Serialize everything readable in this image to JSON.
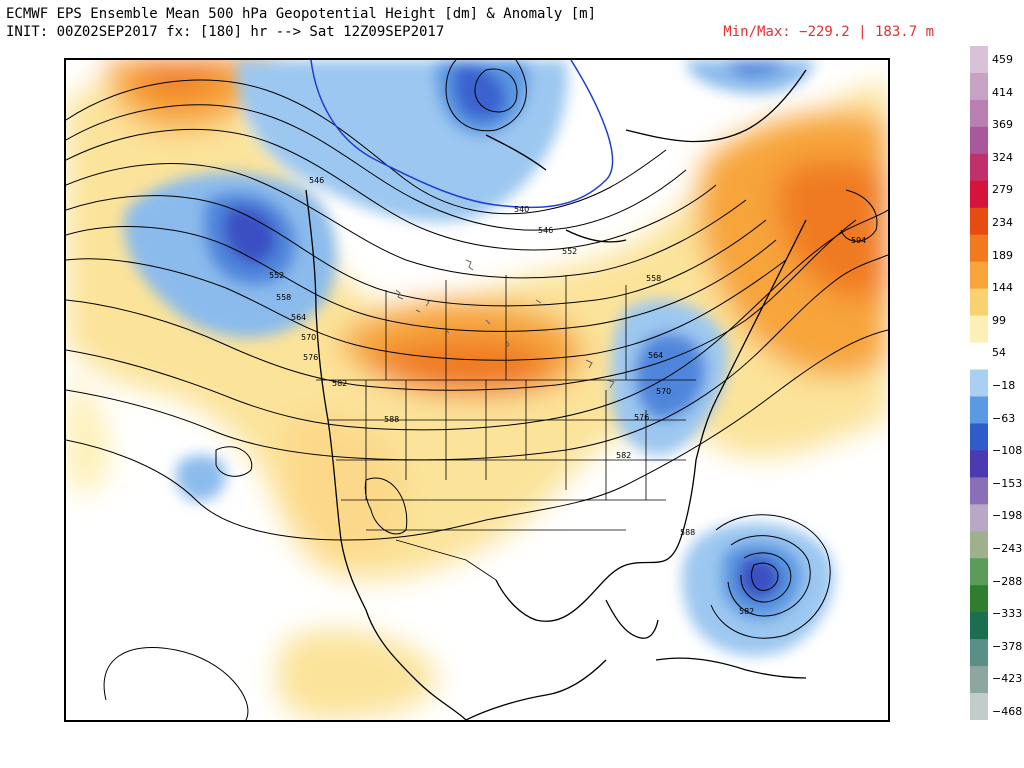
{
  "header": {
    "line1": "ECMWF EPS Ensemble Mean 500 hPa Geopotential Height [dm] & Anomaly [m]",
    "line2": "INIT: 00Z02SEP2017 fx: [180] hr --> Sat 12Z09SEP2017",
    "minmax": "Min/Max: −229.2 | 183.7 m"
  },
  "colorbar": {
    "labels": [
      "459",
      "414",
      "369",
      "324",
      "279",
      "234",
      "189",
      "144",
      "99",
      "54",
      "−18",
      "−63",
      "−108",
      "−153",
      "−198",
      "−243",
      "−288",
      "−333",
      "−378",
      "−423",
      "−468"
    ],
    "colors": [
      "#d8c2d8",
      "#c7a3c3",
      "#b97fb1",
      "#a8599c",
      "#c0306a",
      "#d6133a",
      "#e84b12",
      "#f27a1e",
      "#f7a43a",
      "#fbd071",
      "#fdf0b6",
      "#ffffff",
      "#a9cff2",
      "#5a9ae3",
      "#2e5ccb",
      "#4b3ab0",
      "#8a6fb8",
      "#b9a7c6",
      "#9eb08e",
      "#5c9c5a",
      "#2f7d2f",
      "#1b6e4f",
      "#5a8f87",
      "#8da7a0",
      "#c2cdcb"
    ]
  },
  "contours": {
    "labels": [
      "546",
      "552",
      "558",
      "564",
      "570",
      "576",
      "582",
      "588",
      "540",
      "546",
      "552",
      "558",
      "564",
      "570",
      "576",
      "582",
      "588",
      "594",
      "582"
    ]
  }
}
